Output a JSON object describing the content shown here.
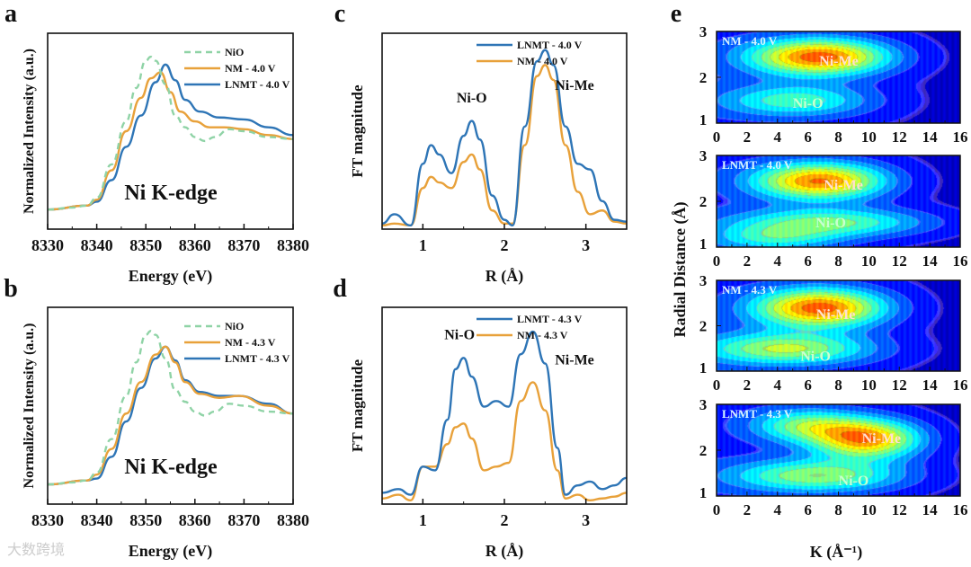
{
  "colors": {
    "blue": "#2e75b6",
    "orange": "#e8a13a",
    "green": "#8fd3a6"
  },
  "chart_data": [
    {
      "panel": "a",
      "type": "line",
      "xlabel": "Energy (eV)",
      "ylabel": "Normalized Intensity (a.u.)",
      "annotation": "Ni K-edge",
      "xlim": [
        8330,
        8380
      ],
      "ylim": [
        0,
        1
      ],
      "xticks": [
        8330,
        8340,
        8350,
        8360,
        8370,
        8380
      ],
      "series": [
        {
          "name": "NiO",
          "style": "dashed",
          "color": "#8fd3a6",
          "x": [
            8330,
            8335,
            8338,
            8340,
            8343,
            8346,
            8348,
            8350,
            8351,
            8352,
            8354,
            8356,
            8358,
            8360,
            8362,
            8364,
            8367,
            8370,
            8375,
            8380
          ],
          "y": [
            0.1,
            0.11,
            0.12,
            0.16,
            0.33,
            0.55,
            0.72,
            0.86,
            0.88,
            0.86,
            0.74,
            0.58,
            0.52,
            0.47,
            0.45,
            0.47,
            0.51,
            0.5,
            0.47,
            0.46
          ]
        },
        {
          "name": "NM - 4.0 V",
          "color": "#e8a13a",
          "x": [
            8330,
            8338,
            8340,
            8343,
            8346,
            8349,
            8351,
            8353,
            8355,
            8357,
            8360,
            8363,
            8366,
            8370,
            8375,
            8380
          ],
          "y": [
            0.1,
            0.12,
            0.15,
            0.3,
            0.5,
            0.67,
            0.77,
            0.8,
            0.7,
            0.6,
            0.55,
            0.52,
            0.52,
            0.51,
            0.48,
            0.46
          ]
        },
        {
          "name": "LNMT - 4.0 V",
          "color": "#2e75b6",
          "x": [
            8330,
            8338,
            8340,
            8343,
            8346,
            8349,
            8352,
            8354,
            8356,
            8358,
            8361,
            8365,
            8370,
            8375,
            8380
          ],
          "y": [
            0.1,
            0.12,
            0.14,
            0.25,
            0.42,
            0.58,
            0.75,
            0.84,
            0.76,
            0.66,
            0.6,
            0.57,
            0.56,
            0.52,
            0.48
          ]
        }
      ]
    },
    {
      "panel": "b",
      "type": "line",
      "xlabel": "Energy (eV)",
      "ylabel": "Normalized Intensity (a.u.)",
      "annotation": "Ni K-edge",
      "xlim": [
        8330,
        8380
      ],
      "ylim": [
        0,
        1
      ],
      "xticks": [
        8330,
        8340,
        8350,
        8360,
        8370,
        8380
      ],
      "series": [
        {
          "name": "NiO",
          "style": "dashed",
          "color": "#8fd3a6",
          "x": [
            8330,
            8335,
            8338,
            8340,
            8343,
            8346,
            8348,
            8350,
            8351,
            8352,
            8354,
            8356,
            8358,
            8360,
            8362,
            8364,
            8367,
            8370,
            8375,
            8380
          ],
          "y": [
            0.1,
            0.11,
            0.12,
            0.16,
            0.33,
            0.55,
            0.72,
            0.86,
            0.88,
            0.86,
            0.74,
            0.58,
            0.52,
            0.47,
            0.45,
            0.47,
            0.51,
            0.5,
            0.47,
            0.46
          ]
        },
        {
          "name": "NM - 4.3 V",
          "color": "#e8a13a",
          "x": [
            8330,
            8338,
            8340,
            8343,
            8346,
            8349,
            8352,
            8354,
            8356,
            8358,
            8361,
            8365,
            8369,
            8375,
            8380
          ],
          "y": [
            0.1,
            0.12,
            0.15,
            0.28,
            0.46,
            0.62,
            0.76,
            0.8,
            0.72,
            0.62,
            0.56,
            0.54,
            0.55,
            0.5,
            0.46
          ]
        },
        {
          "name": "LNMT - 4.3 V",
          "color": "#2e75b6",
          "x": [
            8330,
            8338,
            8340,
            8343,
            8346,
            8349,
            8352,
            8354,
            8356,
            8358,
            8361,
            8365,
            8369,
            8375,
            8380
          ],
          "y": [
            0.1,
            0.12,
            0.13,
            0.24,
            0.42,
            0.59,
            0.74,
            0.8,
            0.73,
            0.63,
            0.57,
            0.55,
            0.55,
            0.51,
            0.46
          ]
        }
      ]
    },
    {
      "panel": "c",
      "type": "line",
      "xlabel": "R (Å)",
      "ylabel": "FT magnitude",
      "xlim": [
        0.5,
        3.5
      ],
      "ylim": [
        0,
        1.05
      ],
      "xticks": [
        1,
        2,
        3
      ],
      "annotations": [
        {
          "text": "Ni-O",
          "x": 1.6,
          "y": 0.68
        },
        {
          "text": "Ni-Me",
          "x": 2.75,
          "y": 0.9
        }
      ],
      "series": [
        {
          "name": "LNMT - 4.0 V",
          "color": "#2e75b6",
          "x": [
            0.5,
            0.65,
            0.85,
            1.0,
            1.1,
            1.2,
            1.35,
            1.5,
            1.6,
            1.7,
            1.85,
            2.0,
            2.1,
            2.25,
            2.4,
            2.5,
            2.6,
            2.75,
            2.9,
            3.05,
            3.2,
            3.35,
            3.5
          ],
          "y": [
            0.03,
            0.08,
            0.02,
            0.35,
            0.45,
            0.4,
            0.3,
            0.5,
            0.58,
            0.48,
            0.18,
            0.05,
            0.02,
            0.55,
            0.9,
            0.96,
            0.88,
            0.55,
            0.35,
            0.32,
            0.15,
            0.05,
            0.04
          ]
        },
        {
          "name": "NM - 4.0 V",
          "color": "#e8a13a",
          "x": [
            0.5,
            0.65,
            0.85,
            1.0,
            1.1,
            1.2,
            1.35,
            1.5,
            1.6,
            1.7,
            1.85,
            2.0,
            2.1,
            2.25,
            2.4,
            2.5,
            2.6,
            2.75,
            2.9,
            3.05,
            3.2,
            3.35,
            3.5
          ],
          "y": [
            0.02,
            0.03,
            0.02,
            0.22,
            0.28,
            0.25,
            0.22,
            0.36,
            0.4,
            0.32,
            0.1,
            0.03,
            0.03,
            0.45,
            0.82,
            0.88,
            0.8,
            0.45,
            0.2,
            0.08,
            0.1,
            0.04,
            0.03
          ]
        }
      ]
    },
    {
      "panel": "d",
      "type": "line",
      "xlabel": "R (Å)",
      "ylabel": "FT magnitude",
      "xlim": [
        0.5,
        3.5
      ],
      "ylim": [
        0,
        1.05
      ],
      "xticks": [
        1,
        2,
        3
      ],
      "annotations": [
        {
          "text": "Ni-O",
          "x": 1.45,
          "y": 0.88
        },
        {
          "text": "Ni-Me",
          "x": 2.75,
          "y": 0.9
        }
      ],
      "series": [
        {
          "name": "LNMT - 4.3 V",
          "color": "#2e75b6",
          "x": [
            0.5,
            0.7,
            0.85,
            1.0,
            1.15,
            1.3,
            1.4,
            1.5,
            1.6,
            1.75,
            1.9,
            2.05,
            2.2,
            2.35,
            2.5,
            2.65,
            2.75,
            2.9,
            3.05,
            3.2,
            3.35,
            3.5
          ],
          "y": [
            0.06,
            0.08,
            0.05,
            0.2,
            0.18,
            0.45,
            0.72,
            0.78,
            0.68,
            0.52,
            0.55,
            0.52,
            0.8,
            0.92,
            0.75,
            0.3,
            0.05,
            0.1,
            0.12,
            0.08,
            0.1,
            0.14
          ]
        },
        {
          "name": "NM - 4.3 V",
          "color": "#e8a13a",
          "x": [
            0.5,
            0.7,
            0.85,
            1.0,
            1.15,
            1.3,
            1.4,
            1.5,
            1.6,
            1.75,
            1.9,
            2.05,
            2.2,
            2.35,
            2.5,
            2.65,
            2.75,
            2.9,
            3.05,
            3.2,
            3.35,
            3.5
          ],
          "y": [
            0.03,
            0.05,
            0.02,
            0.2,
            0.2,
            0.32,
            0.41,
            0.43,
            0.35,
            0.18,
            0.2,
            0.22,
            0.55,
            0.65,
            0.5,
            0.18,
            0.03,
            0.05,
            0.02,
            0.03,
            0.04,
            0.06
          ]
        }
      ]
    },
    {
      "panel": "e",
      "type": "heatmap",
      "xlabel": "K (Å⁻¹)",
      "ylabel": "Radial Distance (Å)",
      "xlim": [
        0,
        16
      ],
      "ylim": [
        1,
        3
      ],
      "xticks": [
        0,
        2,
        4,
        6,
        8,
        10,
        12,
        14,
        16
      ],
      "yticks": [
        1,
        2,
        3
      ],
      "maps": [
        {
          "name": "NM - 4.0 V",
          "labels": [
            {
              "text": "Ni-Me",
              "k": 7.2,
              "r": 2.45
            },
            {
              "text": "Ni-O",
              "k": 6,
              "r": 1.45
            }
          ],
          "peaks": [
            [
              7,
              2.45,
              1.0,
              3.2,
              0.28
            ],
            [
              5.5,
              1.5,
              0.45,
              3.5,
              0.25
            ]
          ]
        },
        {
          "name": "LNMT - 4.0 V",
          "labels": [
            {
              "text": "Ni-Me",
              "k": 7.5,
              "r": 2.45
            },
            {
              "text": "Ni-O",
              "k": 7.5,
              "r": 1.55
            }
          ],
          "peaks": [
            [
              7,
              2.45,
              0.95,
              3.0,
              0.28
            ],
            [
              8,
              1.55,
              0.55,
              4.5,
              0.22
            ],
            [
              4,
              1.2,
              0.35,
              3,
              0.2
            ]
          ]
        },
        {
          "name": "NM - 4.3 V",
          "labels": [
            {
              "text": "Ni-Me",
              "k": 7.0,
              "r": 2.35
            },
            {
              "text": "Ni-O",
              "k": 6.5,
              "r": 1.35
            }
          ],
          "peaks": [
            [
              7,
              2.4,
              1.0,
              3.0,
              0.3
            ],
            [
              5,
              1.5,
              0.6,
              4,
              0.25
            ]
          ]
        },
        {
          "name": "LNMT - 4.3 V",
          "labels": [
            {
              "text": "Ni-Me",
              "k": 10,
              "r": 2.35
            },
            {
              "text": "Ni-O",
              "k": 9,
              "r": 1.35
            }
          ],
          "peaks": [
            [
              10,
              2.25,
              1.0,
              2.5,
              0.3
            ],
            [
              7,
              1.45,
              0.6,
              4,
              0.25
            ],
            [
              6,
              2.55,
              0.5,
              2.5,
              0.25
            ]
          ]
        }
      ]
    }
  ],
  "panel_letters": [
    "a",
    "b",
    "c",
    "d",
    "e"
  ],
  "watermark": "大数跨境"
}
